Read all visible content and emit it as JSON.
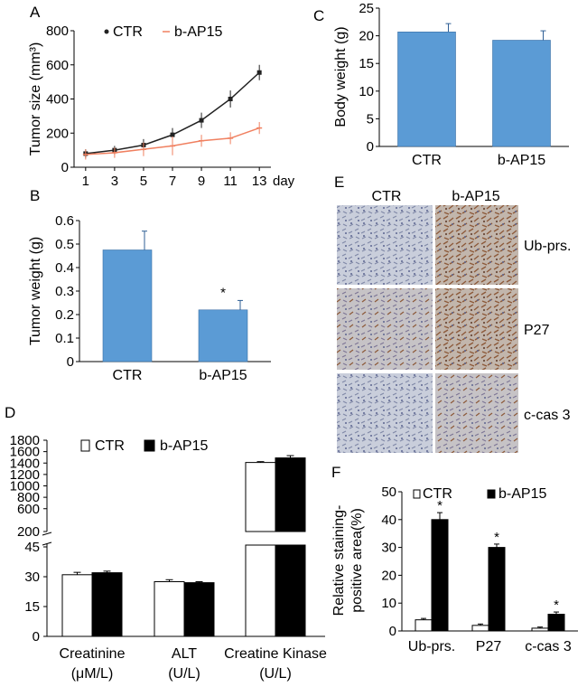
{
  "panels": {
    "a": "A",
    "b": "B",
    "c": "C",
    "d": "D",
    "e": "E",
    "f": "F"
  },
  "colors": {
    "bar_blue": "#5b9bd5",
    "ctr_line": "#222222",
    "bap_line": "#f08060",
    "ihc_bg": "#c8cdd8",
    "ihc_brown": "#9b6a45"
  },
  "panel_e": {
    "column_labels": [
      "CTR",
      "b-AP15"
    ],
    "row_labels": [
      "Ub-prs.",
      "P27",
      "c-cas 3"
    ]
  },
  "chart_data": [
    {
      "id": "A",
      "type": "line",
      "ylabel": "Tumor size (mm³)",
      "x_unit": "day",
      "x": [
        1,
        3,
        5,
        7,
        9,
        11,
        13
      ],
      "xticks": [
        "1",
        "3",
        "5",
        "7",
        "9",
        "11",
        "13"
      ],
      "ylim": [
        0,
        800
      ],
      "yticks": [
        "0",
        "200",
        "400",
        "600",
        "800"
      ],
      "series": [
        {
          "name": "CTR",
          "values": [
            80,
            100,
            130,
            190,
            275,
            400,
            555
          ],
          "errors": [
            25,
            25,
            35,
            40,
            45,
            50,
            45
          ]
        },
        {
          "name": "b-AP15",
          "values": [
            75,
            85,
            105,
            125,
            155,
            170,
            230
          ],
          "errors": [
            30,
            30,
            40,
            55,
            35,
            35,
            35
          ]
        }
      ]
    },
    {
      "id": "B",
      "type": "bar",
      "ylabel": "Tumor weight (g)",
      "categories": [
        "CTR",
        "b-AP15"
      ],
      "values": [
        0.475,
        0.22
      ],
      "errors": [
        0.08,
        0.04
      ],
      "significance": [
        "",
        "*"
      ],
      "ylim": [
        0,
        0.6
      ],
      "yticks": [
        "0",
        "0.1",
        "0.2",
        "0.3",
        "0.4",
        "0.5",
        "0.6"
      ]
    },
    {
      "id": "C",
      "type": "bar",
      "ylabel": "Body weight (g)",
      "categories": [
        "CTR",
        "b-AP15"
      ],
      "values": [
        20.7,
        19.2
      ],
      "errors": [
        1.5,
        1.7
      ],
      "ylim": [
        0,
        25
      ],
      "yticks": [
        "0",
        "5",
        "10",
        "15",
        "20",
        "25"
      ]
    },
    {
      "id": "D",
      "type": "bar",
      "categories": [
        "Creatinine",
        "ALT",
        "Creatine Kinase"
      ],
      "category_units": [
        "(μM/L)",
        "(U/L)",
        "(U/L)"
      ],
      "series": [
        {
          "name": "CTR",
          "values": [
            31,
            27.5,
            1410
          ],
          "errors": [
            1.2,
            1.0,
            15
          ]
        },
        {
          "name": "b-AP15",
          "values": [
            32,
            27,
            1490
          ],
          "errors": [
            0.8,
            0.5,
            40
          ]
        }
      ],
      "axis_break": {
        "lower_range": [
          0,
          45
        ],
        "upper_range": [
          200,
          1800
        ]
      },
      "yticks_lower": [
        "0",
        "15",
        "30",
        "45"
      ],
      "yticks_upper": [
        "200",
        "600",
        "1000",
        "1400",
        "1800"
      ],
      "yticks_upper_extra": [
        "200",
        "600",
        "800",
        "1000",
        "1200",
        "1400",
        "1600",
        "1800"
      ]
    },
    {
      "id": "F",
      "type": "bar",
      "ylabel": "Relative staining-\npositive area(%)",
      "categories": [
        "Ub-prs.",
        "P27",
        "c-cas 3"
      ],
      "series": [
        {
          "name": "CTR",
          "values": [
            4,
            2,
            1
          ],
          "errors": [
            0.5,
            0.5,
            0.4
          ]
        },
        {
          "name": "b-AP15",
          "values": [
            40,
            30,
            6
          ],
          "errors": [
            2.5,
            1.2,
            0.8
          ]
        }
      ],
      "significance": [
        "*",
        "*",
        "*"
      ],
      "ylim": [
        0,
        50
      ],
      "yticks": [
        "0",
        "10",
        "20",
        "30",
        "40",
        "50"
      ]
    }
  ]
}
